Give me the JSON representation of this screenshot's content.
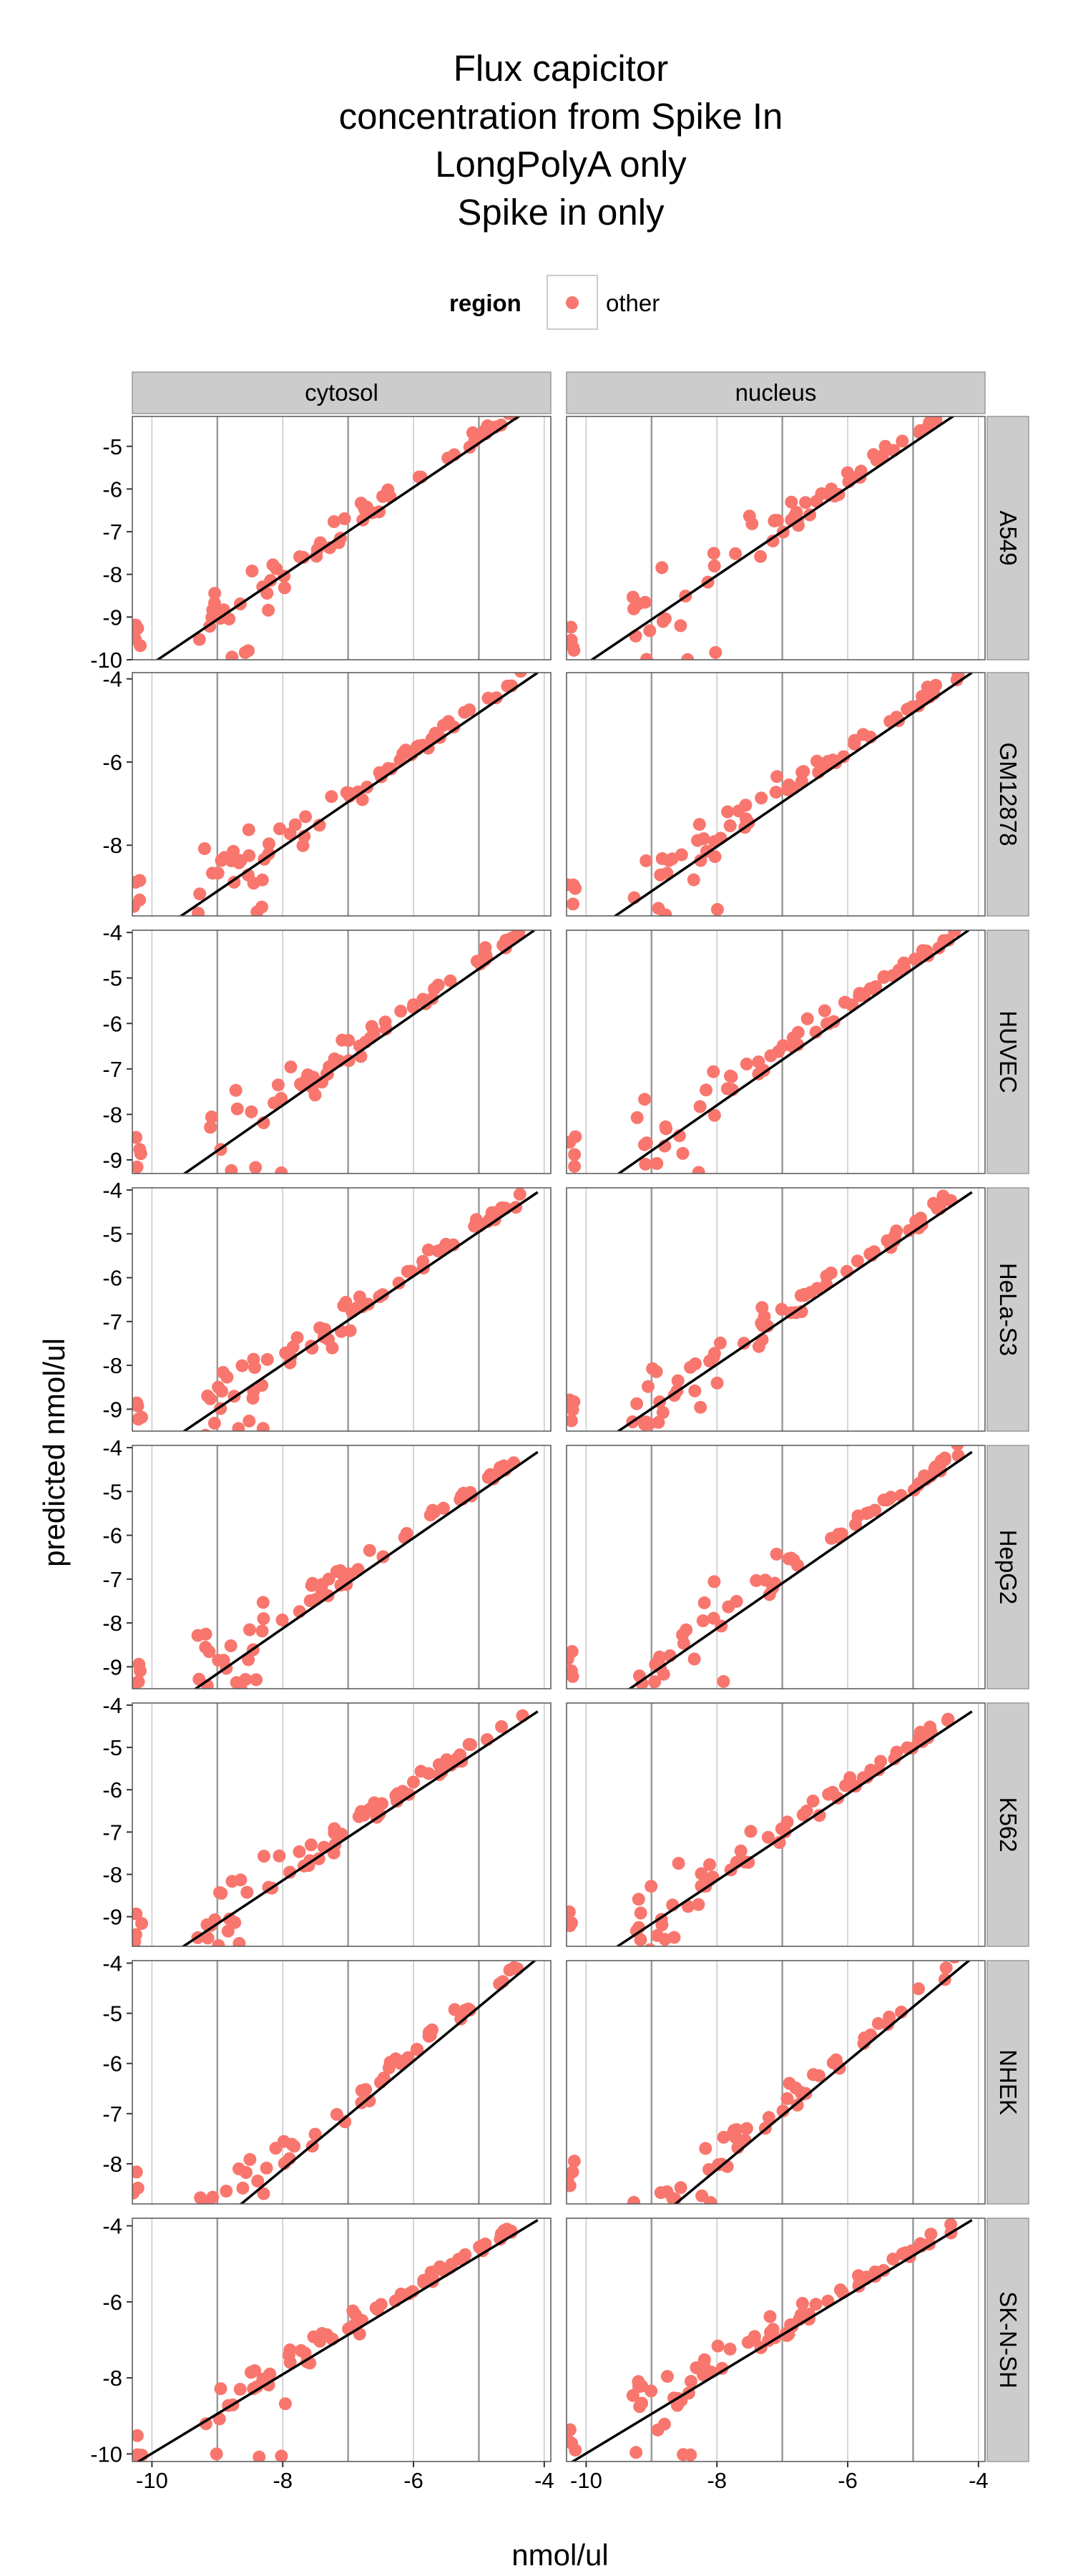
{
  "chart_data": {
    "type": "scatter",
    "title": [
      "Flux capicitor",
      "concentration from Spike In",
      "LongPolyA only",
      "Spike in only"
    ],
    "xlabel": "nmol/ul",
    "ylabel": "predicted nmol/ul",
    "legend": {
      "title": "region",
      "entries": [
        "other"
      ],
      "placement": "top"
    },
    "colors": {
      "points": "#F8766D",
      "fit_line": "#000000",
      "panel_bg": "#ffffff",
      "grid": "#bdbdbd",
      "strip_bg": "#cccccc"
    },
    "columns": [
      "cytosol",
      "nucleus"
    ],
    "rows": [
      "A549",
      "GM12878",
      "HUVEC",
      "HeLa-S3",
      "HepG2",
      "K562",
      "NHEK",
      "SK-N-SH"
    ],
    "xlim": [
      -10.3,
      -3.9
    ],
    "x_ticks": [
      -10,
      -8,
      -6,
      -4
    ],
    "x_tick_labels": [
      "-10",
      "-8",
      "-6",
      "-4"
    ],
    "grid": true,
    "panels": [
      {
        "row": "A549",
        "ylim": [
          -10,
          -4.3
        ],
        "y_ticks": [
          -10,
          -9,
          -8,
          -7,
          -6,
          -5
        ],
        "fit": [
          [
            -10.3,
            -10.4
          ],
          [
            -4.15,
            -4.05
          ]
        ],
        "seed": 11,
        "n": 60
      },
      {
        "row": "GM12878",
        "ylim": [
          -9.7,
          -3.85
        ],
        "y_ticks": [
          -8,
          -6,
          -4
        ],
        "fit": [
          [
            -10.3,
            -10.5
          ],
          [
            -4.1,
            -3.85
          ]
        ],
        "seed": 23,
        "n": 60
      },
      {
        "row": "HUVEC",
        "ylim": [
          -9.3,
          -3.95
        ],
        "y_ticks": [
          -9,
          -8,
          -7,
          -6,
          -5,
          -4
        ],
        "fit": [
          [
            -10.3,
            -10.1
          ],
          [
            -4.15,
            -3.95
          ]
        ],
        "seed": 37,
        "n": 60
      },
      {
        "row": "HeLa-S3",
        "ylim": [
          -9.5,
          -3.95
        ],
        "y_ticks": [
          -9,
          -8,
          -7,
          -6,
          -5,
          -4
        ],
        "fit": [
          [
            -10.3,
            -10.3
          ],
          [
            -4.1,
            -4.05
          ]
        ],
        "seed": 41,
        "n": 65
      },
      {
        "row": "HepG2",
        "ylim": [
          -9.5,
          -3.95
        ],
        "y_ticks": [
          -9,
          -8,
          -7,
          -6,
          -5,
          -4
        ],
        "fit": [
          [
            -10.3,
            -10.5
          ],
          [
            -4.1,
            -4.1
          ]
        ],
        "seed": 53,
        "n": 60
      },
      {
        "row": "K562",
        "ylim": [
          -9.7,
          -3.95
        ],
        "y_ticks": [
          -9,
          -8,
          -7,
          -6,
          -5,
          -4
        ],
        "fit": [
          [
            -10.3,
            -10.5
          ],
          [
            -4.1,
            -4.15
          ]
        ],
        "seed": 67,
        "n": 60
      },
      {
        "row": "NHEK",
        "ylim": [
          -8.8,
          -3.95
        ],
        "y_ticks": [
          -8,
          -7,
          -6,
          -5,
          -4
        ],
        "fit": [
          [
            -10.3,
            -10.6
          ],
          [
            -4.1,
            -3.9
          ]
        ],
        "seed": 79,
        "n": 50
      },
      {
        "row": "SK-N-SH",
        "ylim": [
          -10.2,
          -3.8
        ],
        "y_ticks": [
          -10,
          -8,
          -6,
          -4
        ],
        "fit": [
          [
            -10.3,
            -10.3
          ],
          [
            -4.1,
            -3.85
          ]
        ],
        "seed": 83,
        "n": 70
      }
    ]
  }
}
